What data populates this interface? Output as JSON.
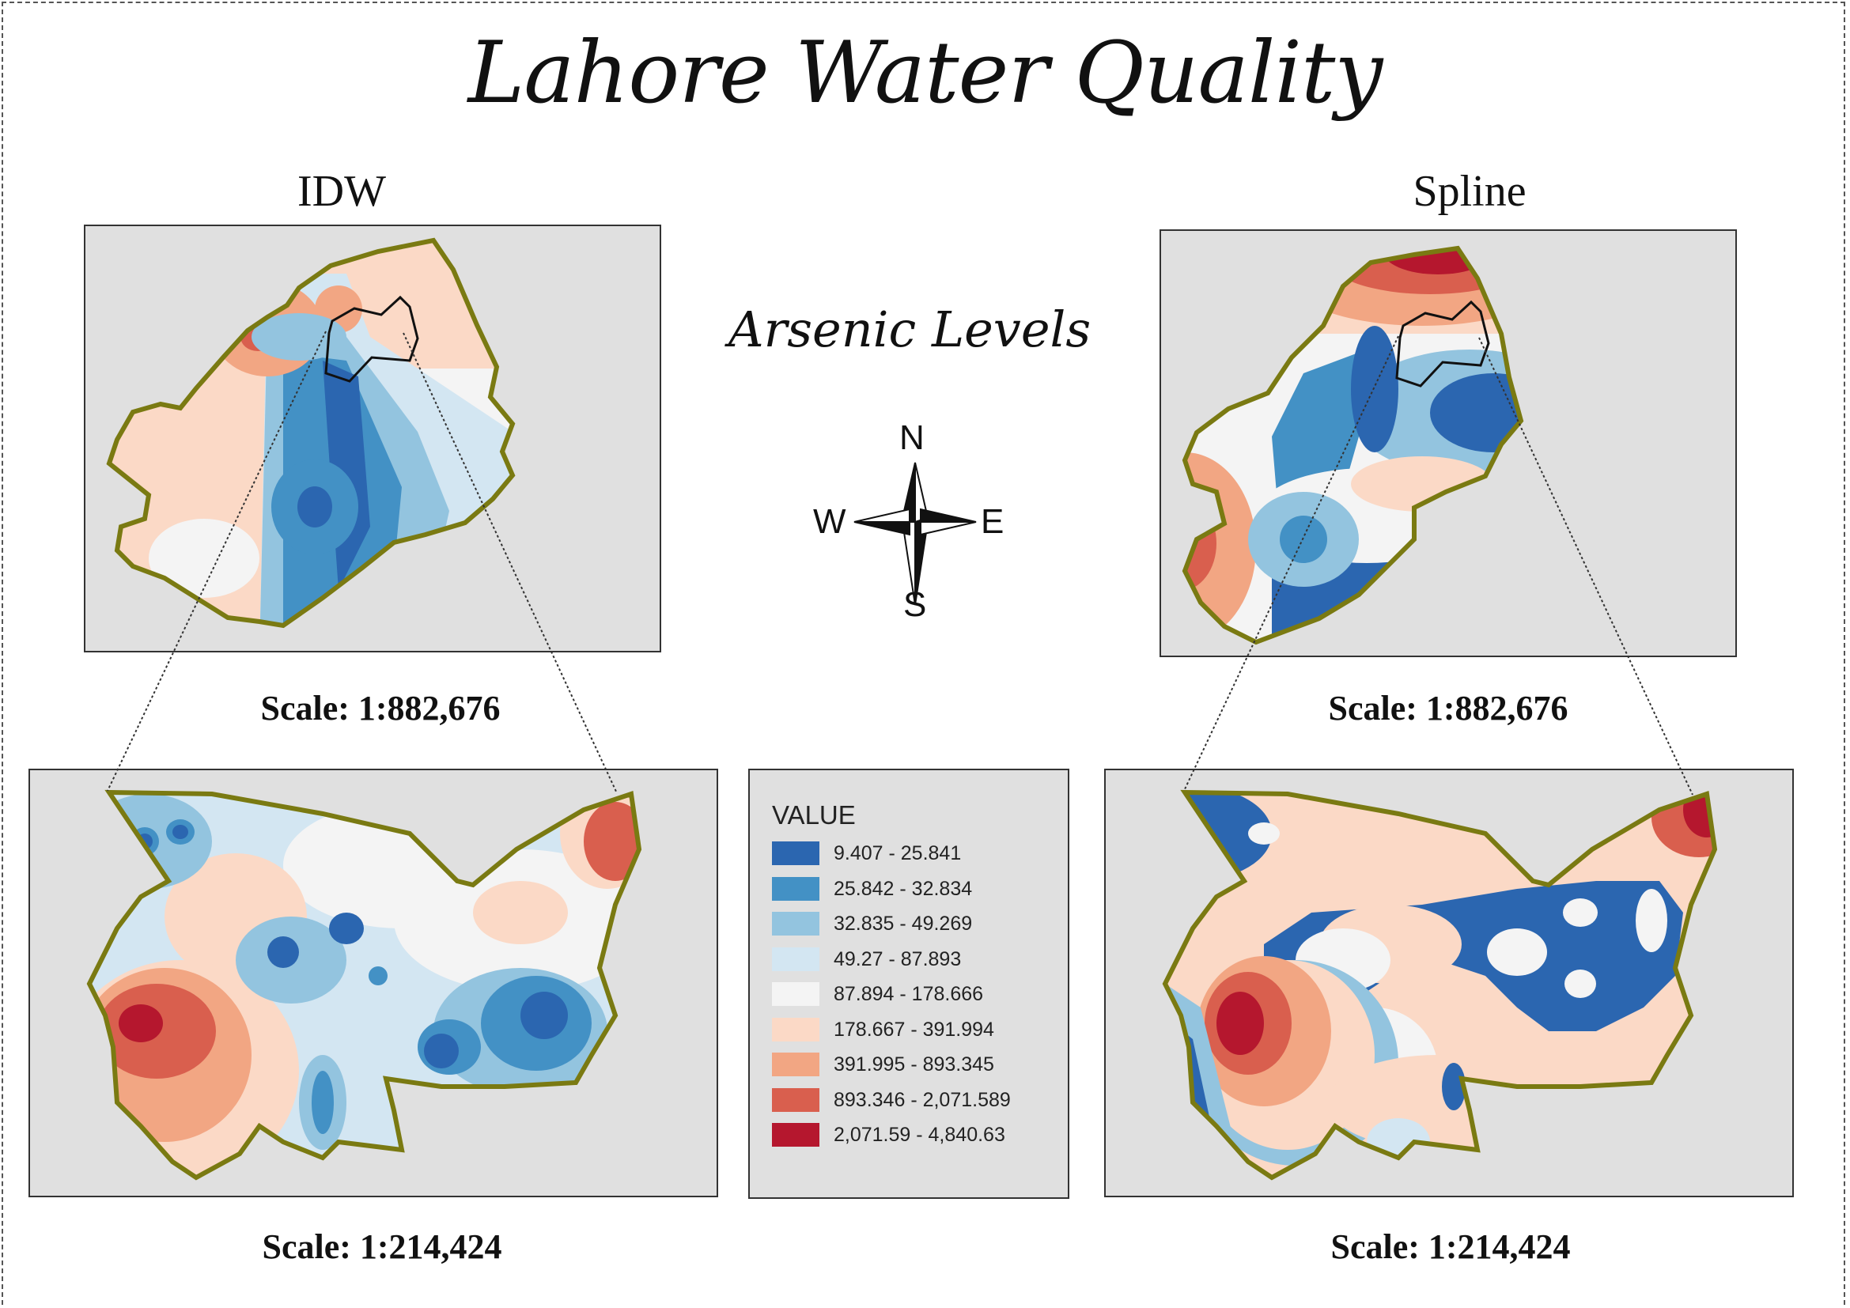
{
  "title": "Lahore Water Quality",
  "subtitle": "Arsenic Levels",
  "maps": {
    "idw": {
      "title": "IDW",
      "overview_scale": "Scale: 1:882,676",
      "detail_scale": "Scale: 1:214,424"
    },
    "spline": {
      "title": "Spline",
      "overview_scale": "Scale: 1:882,676",
      "detail_scale": "Scale: 1:214,424"
    }
  },
  "compass": {
    "n": "N",
    "s": "S",
    "e": "E",
    "w": "W"
  },
  "legend": {
    "title": "VALUE",
    "items": [
      {
        "label": "9.407 - 25.841",
        "color": "#2b66b0"
      },
      {
        "label": "25.842 - 32.834",
        "color": "#4391c5"
      },
      {
        "label": "32.835 - 49.269",
        "color": "#93c4df"
      },
      {
        "label": "49.27 - 87.893",
        "color": "#d3e6f2"
      },
      {
        "label": "87.894 - 178.666",
        "color": "#f4f4f4"
      },
      {
        "label": "178.667 - 391.994",
        "color": "#fbd9c6"
      },
      {
        "label": "391.995 - 893.345",
        "color": "#f2a683"
      },
      {
        "label": "893.346 - 2,071.589",
        "color": "#d95f4e"
      },
      {
        "label": "2,071.59 - 4,840.63",
        "color": "#b5172e"
      }
    ]
  },
  "colors": {
    "boundary": "#7a7a12",
    "background": "#e0e0e0"
  }
}
